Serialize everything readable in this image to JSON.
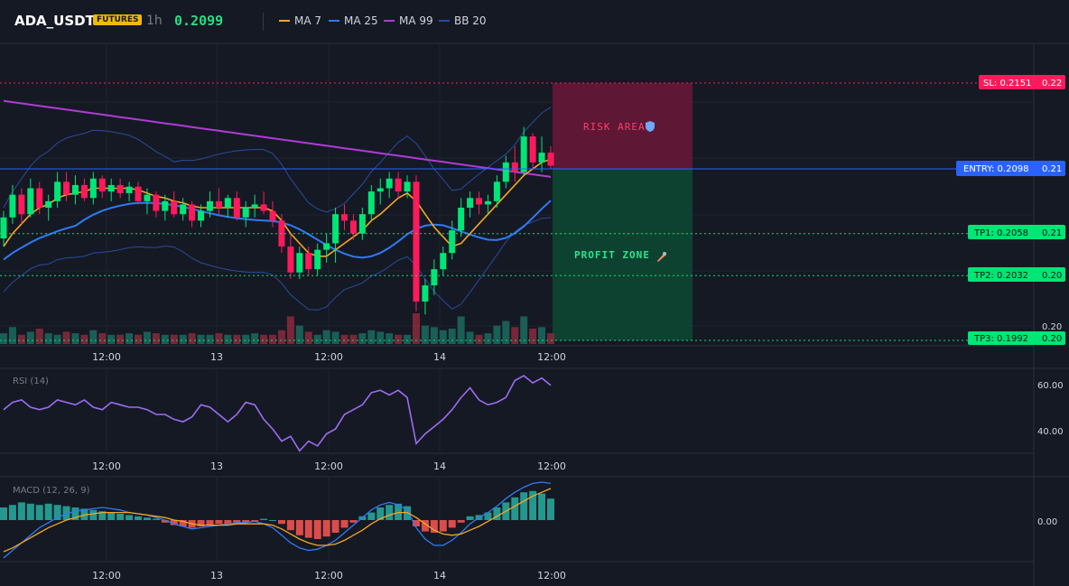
{
  "header": {
    "symbol": "ADA_USDT",
    "badge": "FUTURES",
    "timeframe": "1h",
    "price": "0.2099",
    "indicators": [
      {
        "label": "MA 7",
        "color": "#f5a623"
      },
      {
        "label": "MA 25",
        "color": "#2f7bf5"
      },
      {
        "label": "MA 99",
        "color": "#b03bd6"
      },
      {
        "label": "BB 20",
        "color": "#2a4b9c"
      }
    ]
  },
  "colors": {
    "up": "#00e676",
    "down": "#ff1a5c",
    "entry": "#2962ff",
    "sl": "#ff1a5c",
    "tp": "#00e676"
  },
  "chart_data": [
    {
      "type": "candlestick",
      "pane": "price",
      "x_ticks": [
        "12:00",
        "13",
        "12:00",
        "14",
        "12:00"
      ],
      "price_axis_label": "0.20",
      "ylim": [
        0.1992,
        0.2165
      ],
      "trade_levels": [
        {
          "name": "SL",
          "label": "SL: 0.2151",
          "axis": "0.22",
          "value": 0.2151,
          "color": "#ff1a5c"
        },
        {
          "name": "ENTRY",
          "label": "ENTRY: 0.2098",
          "axis": "0.21",
          "value": 0.2098,
          "color": "#2962ff"
        },
        {
          "name": "TP1",
          "label": "TP1: 0.2058",
          "axis": "0.21",
          "value": 0.2058,
          "color": "#00e676"
        },
        {
          "name": "TP2",
          "label": "TP2: 0.2032",
          "axis": "0.20",
          "value": 0.2032,
          "color": "#00e676"
        },
        {
          "name": "TP3",
          "label": "TP3: 0.1992",
          "axis": "0.20",
          "value": 0.1992,
          "color": "#00e676"
        }
      ],
      "zones": [
        {
          "label": "RISK AREA",
          "icon": "shield-icon",
          "from": 0.2098,
          "to": 0.2151
        },
        {
          "label": "PROFIT ZONE",
          "icon": "rocket-icon",
          "from": 0.1992,
          "to": 0.2098
        }
      ],
      "candles": [
        [
          0.2055,
          0.2072,
          0.205,
          0.2068
        ],
        [
          0.2068,
          0.2088,
          0.2064,
          0.2082
        ],
        [
          0.2082,
          0.2086,
          0.2064,
          0.207
        ],
        [
          0.207,
          0.2092,
          0.2068,
          0.2086
        ],
        [
          0.2086,
          0.209,
          0.207,
          0.2074
        ],
        [
          0.2074,
          0.2082,
          0.2066,
          0.2078
        ],
        [
          0.2078,
          0.2096,
          0.2074,
          0.209
        ],
        [
          0.209,
          0.2096,
          0.2078,
          0.2082
        ],
        [
          0.2082,
          0.2094,
          0.2076,
          0.2088
        ],
        [
          0.2088,
          0.2092,
          0.2078,
          0.208
        ],
        [
          0.208,
          0.2096,
          0.2076,
          0.2092
        ],
        [
          0.2092,
          0.2094,
          0.208,
          0.2084
        ],
        [
          0.2084,
          0.2092,
          0.2078,
          0.2088
        ],
        [
          0.2088,
          0.2092,
          0.208,
          0.2083
        ],
        [
          0.2083,
          0.209,
          0.2078,
          0.2087
        ],
        [
          0.2087,
          0.209,
          0.2076,
          0.2078
        ],
        [
          0.2078,
          0.2086,
          0.207,
          0.2082
        ],
        [
          0.2082,
          0.2084,
          0.2068,
          0.2072
        ],
        [
          0.2072,
          0.2082,
          0.2066,
          0.2078
        ],
        [
          0.2078,
          0.2084,
          0.2068,
          0.207
        ],
        [
          0.207,
          0.208,
          0.2066,
          0.2076
        ],
        [
          0.2076,
          0.2078,
          0.2062,
          0.2066
        ],
        [
          0.2066,
          0.2076,
          0.2062,
          0.2072
        ],
        [
          0.2072,
          0.2084,
          0.2068,
          0.2078
        ],
        [
          0.2078,
          0.2086,
          0.207,
          0.2074
        ],
        [
          0.2074,
          0.2082,
          0.2068,
          0.208
        ],
        [
          0.208,
          0.2084,
          0.2066,
          0.2068
        ],
        [
          0.2068,
          0.2078,
          0.2062,
          0.2074
        ],
        [
          0.2074,
          0.2082,
          0.2068,
          0.2076
        ],
        [
          0.2076,
          0.2084,
          0.207,
          0.2072
        ],
        [
          0.2072,
          0.2078,
          0.2062,
          0.2066
        ],
        [
          0.2066,
          0.207,
          0.2046,
          0.205
        ],
        [
          0.205,
          0.2058,
          0.203,
          0.2034
        ],
        [
          0.2034,
          0.205,
          0.203,
          0.2046
        ],
        [
          0.2046,
          0.205,
          0.2032,
          0.2036
        ],
        [
          0.2036,
          0.2052,
          0.2032,
          0.2048
        ],
        [
          0.2048,
          0.2058,
          0.204,
          0.2052
        ],
        [
          0.2052,
          0.2074,
          0.204,
          0.207
        ],
        [
          0.207,
          0.2076,
          0.206,
          0.2066
        ],
        [
          0.2066,
          0.207,
          0.2054,
          0.2058
        ],
        [
          0.2058,
          0.2074,
          0.2054,
          0.207
        ],
        [
          0.207,
          0.2088,
          0.2066,
          0.2084
        ],
        [
          0.2084,
          0.2092,
          0.2076,
          0.2086
        ],
        [
          0.2086,
          0.2096,
          0.208,
          0.2092
        ],
        [
          0.2092,
          0.2096,
          0.208,
          0.2084
        ],
        [
          0.2084,
          0.2094,
          0.208,
          0.209
        ],
        [
          0.209,
          0.2094,
          0.201,
          0.2016
        ],
        [
          0.2016,
          0.203,
          0.2008,
          0.2026
        ],
        [
          0.2026,
          0.2042,
          0.202,
          0.2036
        ],
        [
          0.2036,
          0.205,
          0.2032,
          0.2046
        ],
        [
          0.2046,
          0.2066,
          0.2042,
          0.206
        ],
        [
          0.206,
          0.208,
          0.2056,
          0.2074
        ],
        [
          0.2074,
          0.2084,
          0.2068,
          0.208
        ],
        [
          0.208,
          0.2084,
          0.207,
          0.2076
        ],
        [
          0.2076,
          0.2082,
          0.207,
          0.2078
        ],
        [
          0.2078,
          0.2094,
          0.2074,
          0.209
        ],
        [
          0.209,
          0.2106,
          0.2086,
          0.2102
        ],
        [
          0.2102,
          0.2112,
          0.209,
          0.2096
        ],
        [
          0.2096,
          0.2124,
          0.2094,
          0.2118
        ],
        [
          0.2118,
          0.212,
          0.2098,
          0.2102
        ],
        [
          0.2102,
          0.2118,
          0.2096,
          0.2108
        ],
        [
          0.2108,
          0.2112,
          0.2098,
          0.21
        ]
      ],
      "volume": [
        0.35,
        0.55,
        0.3,
        0.4,
        0.5,
        0.35,
        0.3,
        0.4,
        0.35,
        0.3,
        0.45,
        0.35,
        0.3,
        0.3,
        0.35,
        0.3,
        0.4,
        0.35,
        0.3,
        0.3,
        0.3,
        0.35,
        0.3,
        0.3,
        0.35,
        0.3,
        0.3,
        0.3,
        0.35,
        0.3,
        0.3,
        0.45,
        0.9,
        0.6,
        0.4,
        0.3,
        0.45,
        0.4,
        0.3,
        0.3,
        0.35,
        0.45,
        0.4,
        0.35,
        0.3,
        0.3,
        1.0,
        0.6,
        0.55,
        0.45,
        0.5,
        0.9,
        0.4,
        0.3,
        0.35,
        0.6,
        0.75,
        0.55,
        0.9,
        0.5,
        0.55,
        0.35
      ],
      "ma7": [
        0.205,
        0.2058,
        0.2064,
        0.207,
        0.2074,
        0.2076,
        0.208,
        0.2082,
        0.2083,
        0.2084,
        0.2086,
        0.2086,
        0.2086,
        0.2086,
        0.2086,
        0.2085,
        0.2083,
        0.2081,
        0.208,
        0.2078,
        0.2077,
        0.2075,
        0.2074,
        0.2074,
        0.2074,
        0.2074,
        0.2074,
        0.2074,
        0.2074,
        0.2074,
        0.2072,
        0.2066,
        0.2058,
        0.2052,
        0.2046,
        0.2044,
        0.2044,
        0.2048,
        0.2052,
        0.2056,
        0.206,
        0.2066,
        0.207,
        0.2075,
        0.208,
        0.2083,
        0.2078,
        0.207,
        0.2062,
        0.2056,
        0.205,
        0.2052,
        0.2058,
        0.2064,
        0.207,
        0.2076,
        0.2082,
        0.2088,
        0.2094,
        0.2098,
        0.2102,
        0.2104
      ]
    },
    {
      "type": "line",
      "pane": "rsi",
      "title": "RSI (14)",
      "y_ticks": [
        "60.00",
        "40.00"
      ],
      "ylim": [
        32,
        67
      ],
      "x_ticks": [
        "12:00",
        "13",
        "12:00",
        "14",
        "12:00"
      ],
      "values": [
        50,
        53,
        54,
        51,
        50,
        51,
        54,
        53,
        52,
        54,
        51,
        50,
        53,
        52,
        51,
        51,
        50,
        48,
        48,
        46,
        45,
        47,
        52,
        51,
        48,
        45,
        48,
        53,
        52,
        46,
        42,
        37,
        39,
        33,
        37,
        35,
        40,
        42,
        48,
        50,
        52,
        57,
        58,
        56,
        58,
        55,
        36,
        40,
        43,
        46,
        50,
        55,
        59,
        54,
        52,
        53,
        55,
        62,
        64,
        61,
        63,
        60
      ]
    },
    {
      "type": "bar",
      "pane": "macd",
      "title": "MACD (12, 26, 9)",
      "y_ticks": [
        "0.00"
      ],
      "ylim": [
        -3.2,
        3.4
      ],
      "x_ticks": [
        "12:00",
        "13",
        "12:00",
        "14",
        "12:00"
      ],
      "histogram": [
        1.0,
        1.2,
        1.4,
        1.3,
        1.2,
        1.3,
        1.2,
        1.1,
        1.0,
        0.9,
        0.8,
        0.7,
        0.6,
        0.5,
        0.4,
        0.3,
        0.2,
        0.1,
        -0.2,
        -0.4,
        -0.5,
        -0.6,
        -0.5,
        -0.4,
        -0.3,
        -0.3,
        -0.2,
        -0.2,
        -0.1,
        0.1,
        0.0,
        -0.3,
        -0.8,
        -1.2,
        -1.4,
        -1.5,
        -1.3,
        -1.0,
        -0.6,
        -0.2,
        0.3,
        0.6,
        1.0,
        1.2,
        1.3,
        1.1,
        -0.5,
        -0.9,
        -1.0,
        -0.9,
        -0.6,
        -0.2,
        0.3,
        0.4,
        0.6,
        1.0,
        1.4,
        1.8,
        2.2,
        2.3,
        2.1,
        1.7
      ],
      "macd": [
        -3.0,
        -2.4,
        -1.8,
        -1.2,
        -0.6,
        -0.2,
        0.2,
        0.5,
        0.7,
        0.8,
        0.9,
        1.0,
        0.9,
        0.8,
        0.6,
        0.5,
        0.4,
        0.2,
        0.0,
        -0.3,
        -0.5,
        -0.7,
        -0.6,
        -0.5,
        -0.4,
        -0.3,
        -0.2,
        -0.2,
        -0.1,
        -0.3,
        -0.6,
        -1.2,
        -1.8,
        -2.2,
        -2.4,
        -2.3,
        -2.0,
        -1.6,
        -1.0,
        -0.4,
        0.2,
        0.8,
        1.2,
        1.4,
        1.2,
        0.8,
        -0.6,
        -1.5,
        -2.0,
        -2.0,
        -1.6,
        -1.0,
        -0.3,
        0.2,
        0.6,
        1.1,
        1.7,
        2.2,
        2.6,
        2.9,
        3.0,
        2.9
      ],
      "signal": [
        -2.5,
        -2.2,
        -1.8,
        -1.4,
        -1.0,
        -0.6,
        -0.3,
        0.0,
        0.2,
        0.4,
        0.5,
        0.6,
        0.6,
        0.6,
        0.6,
        0.5,
        0.4,
        0.3,
        0.2,
        0.0,
        -0.1,
        -0.3,
        -0.4,
        -0.4,
        -0.4,
        -0.4,
        -0.3,
        -0.3,
        -0.3,
        -0.3,
        -0.4,
        -0.7,
        -1.1,
        -1.5,
        -1.8,
        -2.0,
        -2.0,
        -1.9,
        -1.6,
        -1.2,
        -0.8,
        -0.3,
        0.1,
        0.4,
        0.6,
        0.6,
        0.2,
        -0.3,
        -0.8,
        -1.1,
        -1.2,
        -1.1,
        -0.8,
        -0.5,
        -0.1,
        0.3,
        0.7,
        1.1,
        1.5,
        1.9,
        2.2,
        2.5
      ]
    }
  ]
}
